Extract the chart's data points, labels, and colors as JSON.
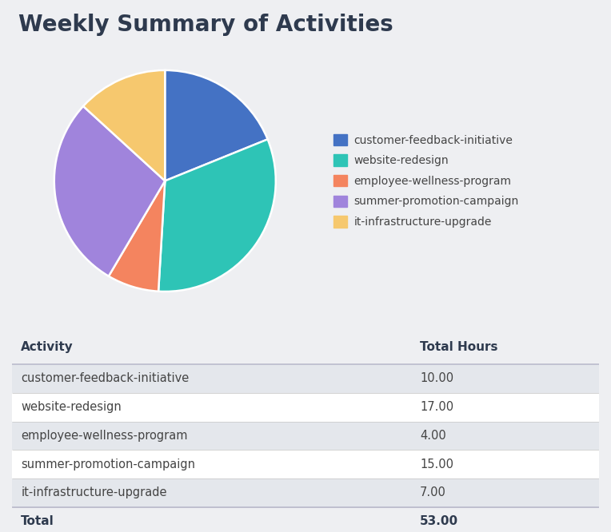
{
  "title": "Weekly Summary of Activities",
  "activities": [
    "customer-feedback-initiative",
    "website-redesign",
    "employee-wellness-program",
    "summer-promotion-campaign",
    "it-infrastructure-upgrade"
  ],
  "hours": [
    10.0,
    17.0,
    4.0,
    15.0,
    7.0
  ],
  "total": 53.0,
  "colors": [
    "#4472C4",
    "#2EC4B6",
    "#F4845F",
    "#A084DC",
    "#F6C86E"
  ],
  "background_color": "#EEEFF2",
  "title_color": "#2E3A4E",
  "title_fontsize": 20,
  "table_header_fontsize": 11,
  "table_body_fontsize": 10.5,
  "legend_fontsize": 10,
  "row_colors": [
    "#E4E7EC",
    "#FFFFFF"
  ],
  "header_text_color": "#2E3A4E",
  "body_text_color": "#444444",
  "total_text_color": "#2E3A4E",
  "divider_color": "#BBBBCC",
  "row_divider_color": "#CCCCCC"
}
